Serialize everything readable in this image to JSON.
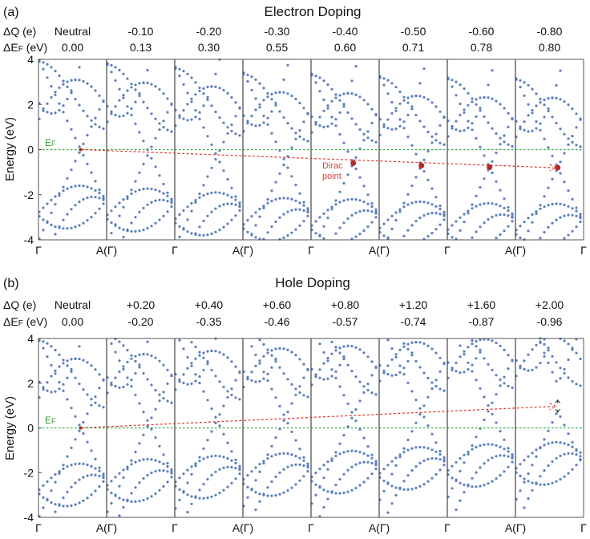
{
  "colors": {
    "bands": "#5b7fbd",
    "fermi_line": "#2eaa3a",
    "trend": "#e0382e",
    "dirac_point": "#b22a26"
  },
  "panels": [
    {
      "label": "(a)",
      "title": "Electron Doping",
      "row1_label": "ΔQ (e)",
      "row2_label": "ΔE",
      "row2_sub": "F",
      "row2_unit": " (eV)",
      "delta_q": [
        "Neutral",
        "-0.10",
        "-0.20",
        "-0.30",
        "-0.40",
        "-0.50",
        "-0.60",
        "-0.80"
      ],
      "delta_ef": [
        "0.00",
        "0.13",
        "0.30",
        "0.55",
        "0.60",
        "0.71",
        "0.78",
        "0.80"
      ],
      "dirac_label_1": "Dirac",
      "dirac_label_2": "point",
      "fermi_label": "E",
      "fermi_sub": "F"
    },
    {
      "label": "(b)",
      "title": "Hole Doping",
      "row1_label": "ΔQ (e)",
      "row2_label": "ΔE",
      "row2_sub": "F",
      "row2_unit": " (eV)",
      "delta_q": [
        "Neutral",
        "+0.20",
        "+0.40",
        "+0.60",
        "+0.80",
        "+1.20",
        "+1.60",
        "+2.00"
      ],
      "delta_ef": [
        "0.00",
        "-0.20",
        "-0.35",
        "-0.46",
        "-0.57",
        "-0.74",
        "-0.87",
        "-0.96"
      ],
      "fermi_label": "E",
      "fermi_sub": "F"
    }
  ],
  "chart_data": [
    {
      "type": "scatter",
      "title": "Electron Doping",
      "xlabel": "",
      "ylabel": "Energy (eV)",
      "ylim": [
        -4,
        4
      ],
      "yticks": [
        "4",
        "2",
        "0",
        "-2",
        "-4"
      ],
      "xticks": [
        "Γ",
        "A(Γ)",
        "Γ",
        "A(Γ)",
        "Γ",
        "A(Γ)",
        "Γ",
        "A(Γ)",
        "Γ"
      ],
      "fermi_level_eV": 0,
      "series": [
        {
          "name": "Neutral",
          "dirac_point_eV": 0.0
        },
        {
          "name": "-0.10",
          "dirac_point_eV": -0.13
        },
        {
          "name": "-0.20",
          "dirac_point_eV": -0.3
        },
        {
          "name": "-0.30",
          "dirac_point_eV": -0.55
        },
        {
          "name": "-0.40",
          "dirac_point_eV": -0.6
        },
        {
          "name": "-0.50",
          "dirac_point_eV": -0.71
        },
        {
          "name": "-0.60",
          "dirac_point_eV": -0.78
        },
        {
          "name": "-0.80",
          "dirac_point_eV": -0.8
        }
      ]
    },
    {
      "type": "scatter",
      "title": "Hole Doping",
      "xlabel": "",
      "ylabel": "Energy (eV)",
      "ylim": [
        -4,
        4
      ],
      "yticks": [
        "4",
        "2",
        "0",
        "-2",
        "-4"
      ],
      "xticks": [
        "Γ",
        "A(Γ)",
        "Γ",
        "A(Γ)",
        "Γ",
        "A(Γ)",
        "Γ",
        "A(Γ)",
        "Γ"
      ],
      "fermi_level_eV": 0,
      "series": [
        {
          "name": "Neutral",
          "dirac_point_eV": 0.0
        },
        {
          "name": "+0.20",
          "dirac_point_eV": 0.2
        },
        {
          "name": "+0.40",
          "dirac_point_eV": 0.35
        },
        {
          "name": "+0.60",
          "dirac_point_eV": 0.46
        },
        {
          "name": "+0.80",
          "dirac_point_eV": 0.57
        },
        {
          "name": "+1.20",
          "dirac_point_eV": 0.74
        },
        {
          "name": "+1.60",
          "dirac_point_eV": 0.87
        },
        {
          "name": "+2.00",
          "dirac_point_eV": 0.96
        }
      ]
    }
  ]
}
